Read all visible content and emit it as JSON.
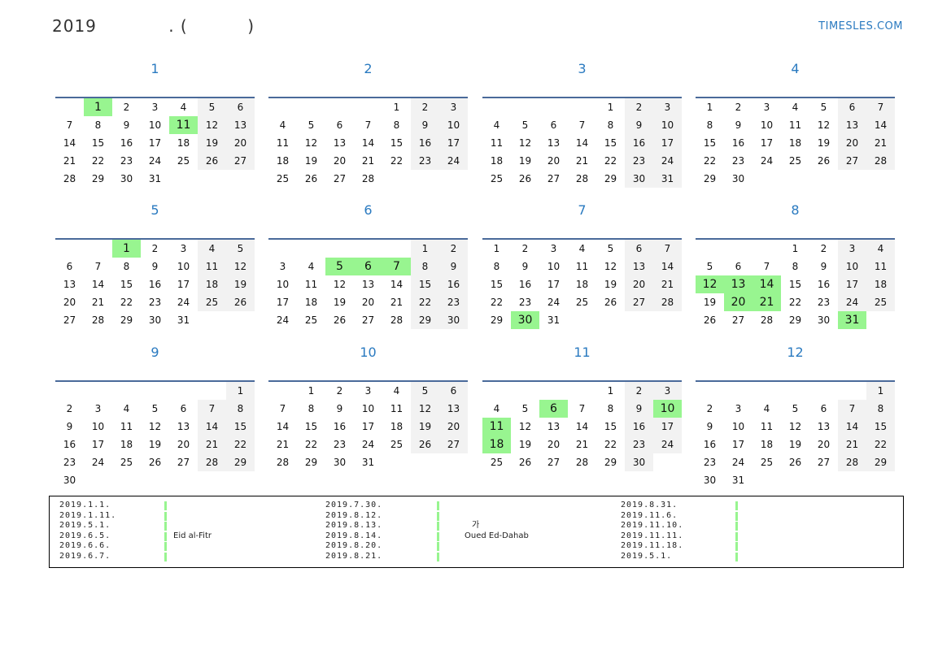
{
  "header": {
    "title": "2019            . (          )",
    "brand": "TIMESLES.COM"
  },
  "colors": {
    "accent": "#2a7ac0",
    "holiday": "#98f590",
    "weekend": "#f2f2f2",
    "rule": "#4a6a9a"
  },
  "months": [
    {
      "title": "1",
      "first_weekday": 2,
      "days": 31,
      "holidays": [
        1,
        11
      ]
    },
    {
      "title": "2",
      "first_weekday": 5,
      "days": 28,
      "holidays": []
    },
    {
      "title": "3",
      "first_weekday": 5,
      "days": 31,
      "holidays": []
    },
    {
      "title": "4",
      "first_weekday": 1,
      "days": 30,
      "holidays": []
    },
    {
      "title": "5",
      "first_weekday": 3,
      "days": 31,
      "holidays": [
        1
      ]
    },
    {
      "title": "6",
      "first_weekday": 6,
      "days": 30,
      "holidays": [
        5,
        6,
        7
      ]
    },
    {
      "title": "7",
      "first_weekday": 1,
      "days": 31,
      "holidays": [
        30
      ]
    },
    {
      "title": "8",
      "first_weekday": 4,
      "days": 31,
      "holidays": [
        12,
        13,
        14,
        20,
        21,
        31
      ]
    },
    {
      "title": "9",
      "first_weekday": 7,
      "days": 30,
      "holidays": []
    },
    {
      "title": "10",
      "first_weekday": 2,
      "days": 31,
      "holidays": []
    },
    {
      "title": "11",
      "first_weekday": 5,
      "days": 30,
      "holidays": [
        6,
        10,
        11,
        18
      ]
    },
    {
      "title": "12",
      "first_weekday": 7,
      "days": 31,
      "holidays": []
    }
  ],
  "legend": [
    [
      {
        "date": "2019.1.1.",
        "name": ""
      },
      {
        "date": "2019.1.11.",
        "name": ""
      },
      {
        "date": "2019.5.1.",
        "name": ""
      },
      {
        "date": "2019.6.5.",
        "name": "Eid al-Fitr"
      },
      {
        "date": "2019.6.6.",
        "name": ""
      },
      {
        "date": "2019.6.7.",
        "name": ""
      }
    ],
    [
      {
        "date": "2019.7.30.",
        "name": ""
      },
      {
        "date": "2019.8.12.",
        "name": ""
      },
      {
        "date": "2019.8.13.",
        "name": "가"
      },
      {
        "date": "2019.8.14.",
        "name": "Oued Ed-Dahab"
      },
      {
        "date": "2019.8.20.",
        "name": ""
      },
      {
        "date": "2019.8.21.",
        "name": ""
      }
    ],
    [
      {
        "date": "2019.8.31.",
        "name": ""
      },
      {
        "date": "2019.11.6.",
        "name": ""
      },
      {
        "date": "2019.11.10.",
        "name": ""
      },
      {
        "date": "2019.11.11.",
        "name": ""
      },
      {
        "date": "2019.11.18.",
        "name": ""
      },
      {
        "date": "2019.5.1.",
        "name": ""
      }
    ]
  ]
}
